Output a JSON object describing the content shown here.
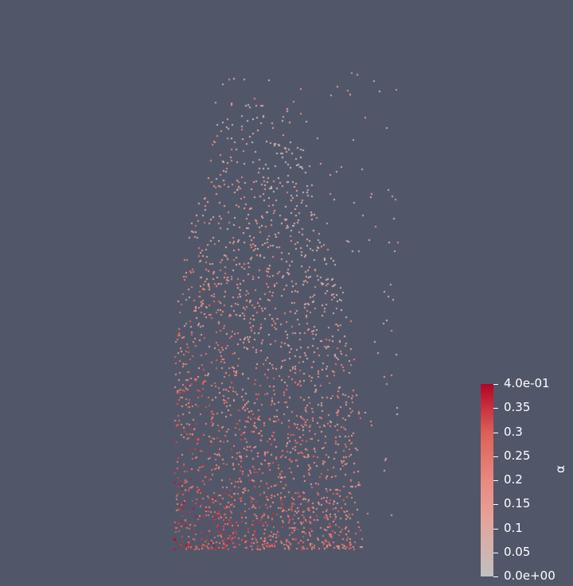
{
  "render_view": {
    "background_color": "#525669",
    "point_cloud": {
      "scalar_name": "α",
      "color_low": "#c0c0c0",
      "color_mid": "#e8897f",
      "color_high": "#b40426"
    }
  },
  "color_legend": {
    "title": "α",
    "range": [
      0.0,
      0.4
    ],
    "tick_labels": [
      "4.0e-01",
      "0.35",
      "0.3",
      "0.25",
      "0.2",
      "0.15",
      "0.1",
      "0.05",
      "0.0e+00"
    ],
    "tick_values": [
      0.4,
      0.35,
      0.3,
      0.25,
      0.2,
      0.15,
      0.1,
      0.05,
      0.0
    ],
    "text_color": "#ffffff"
  }
}
